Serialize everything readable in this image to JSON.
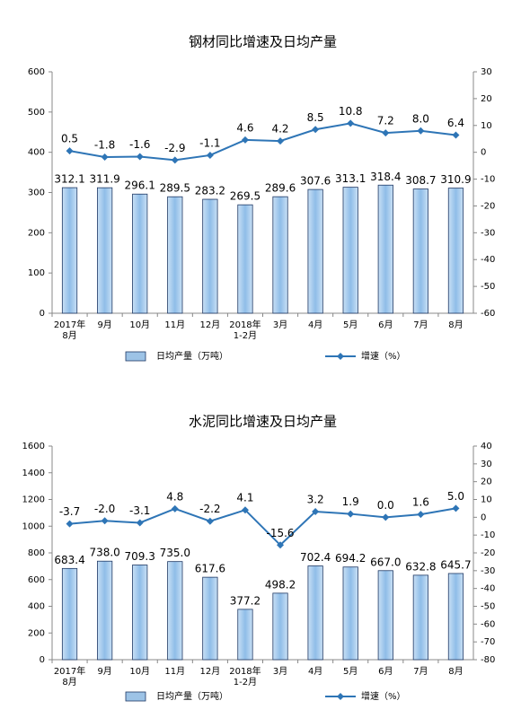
{
  "chart_data": [
    {
      "type": "combo",
      "title": "钢材同比增速及日均产量",
      "categories": [
        "2017年\n8月",
        "9月",
        "10月",
        "11月",
        "12月",
        "2018年\n1-2月",
        "3月",
        "4月",
        "5月",
        "6月",
        "7月",
        "8月"
      ],
      "series": [
        {
          "name": "日均产量（万吨）",
          "type": "bar",
          "color": "#9dc3e6",
          "axis": "y",
          "values": [
            312.1,
            311.9,
            296.1,
            289.5,
            283.2,
            269.5,
            289.6,
            307.6,
            313.1,
            318.4,
            308.7,
            310.9
          ],
          "value_labels": [
            "312.1",
            "311.9",
            "296.1",
            "289.5",
            "283.2",
            "269.5",
            "289.6",
            "307.6",
            "313.1",
            "318.4",
            "308.7",
            "310.9"
          ]
        },
        {
          "name": "增速（%）",
          "type": "line",
          "color": "#2e75b6",
          "axis": "y2",
          "values": [
            0.5,
            -1.8,
            -1.6,
            -2.9,
            -1.1,
            4.6,
            4.2,
            8.5,
            10.8,
            7.2,
            8.0,
            6.4
          ],
          "value_labels": [
            "0.5",
            "-1.8",
            "-1.6",
            "-2.9",
            "-1.1",
            "4.6",
            "4.2",
            "8.5",
            "10.8",
            "7.2",
            "8.0",
            "6.4"
          ]
        }
      ],
      "ylim": [
        0,
        600
      ],
      "yticks": [
        0,
        100,
        200,
        300,
        400,
        500,
        600
      ],
      "y2lim": [
        -60,
        30
      ],
      "y2ticks": [
        -60,
        -50,
        -40,
        -30,
        -20,
        -10,
        0,
        10,
        20,
        30
      ]
    },
    {
      "type": "combo",
      "title": "水泥同比增速及日均产量",
      "categories": [
        "2017年\n8月",
        "9月",
        "10月",
        "11月",
        "12月",
        "2018年\n1-2月",
        "3月",
        "4月",
        "5月",
        "6月",
        "7月",
        "8月"
      ],
      "series": [
        {
          "name": "日均产量（万吨）",
          "type": "bar",
          "color": "#9dc3e6",
          "axis": "y",
          "values": [
            683.4,
            738.0,
            709.3,
            735.0,
            617.6,
            377.2,
            498.2,
            702.4,
            694.2,
            667.0,
            632.8,
            645.7
          ],
          "value_labels": [
            "683.4",
            "738.0",
            "709.3",
            "735.0",
            "617.6",
            "377.2",
            "498.2",
            "702.4",
            "694.2",
            "667.0",
            "632.8",
            "645.7"
          ]
        },
        {
          "name": "增速（%）",
          "type": "line",
          "color": "#2e75b6",
          "axis": "y2",
          "values": [
            -3.7,
            -2.0,
            -3.1,
            4.8,
            -2.2,
            4.1,
            -15.6,
            3.2,
            1.9,
            0.0,
            1.6,
            5.0
          ],
          "value_labels": [
            "-3.7",
            "-2.0",
            "-3.1",
            "4.8",
            "-2.2",
            "4.1",
            "-15.6",
            "3.2",
            "1.9",
            "0.0",
            "1.6",
            "5.0"
          ]
        }
      ],
      "ylim": [
        0,
        1600
      ],
      "yticks": [
        0,
        200,
        400,
        600,
        800,
        1000,
        1200,
        1400,
        1600
      ],
      "y2lim": [
        -80,
        40
      ],
      "y2ticks": [
        -80,
        -70,
        -60,
        -50,
        -40,
        -30,
        -20,
        -10,
        0,
        10,
        20,
        30,
        40
      ]
    }
  ]
}
